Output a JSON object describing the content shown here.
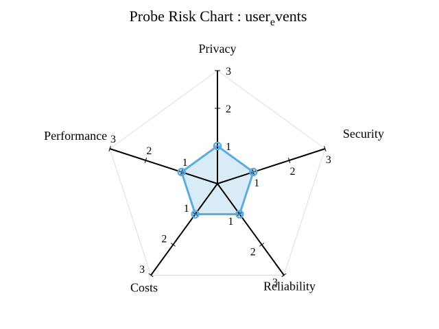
{
  "chart_data": {
    "type": "radar",
    "title_main": "Probe Risk Chart : user",
    "title_sub": "e",
    "title_tail": "vents",
    "axes": [
      "Privacy",
      "Security",
      "Reliability",
      "Costs",
      "Performance"
    ],
    "range": [
      0,
      3
    ],
    "ticks": [
      1,
      2,
      3
    ],
    "grid": true,
    "series": [
      {
        "values": [
          1,
          1,
          1,
          1,
          1
        ],
        "color": "#5aace0",
        "fill": "#d8ebf7"
      }
    ]
  }
}
